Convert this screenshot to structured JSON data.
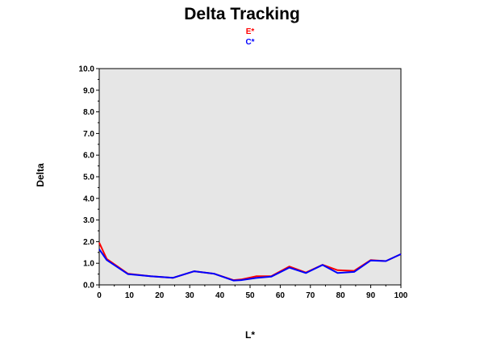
{
  "chart_data": {
    "type": "line",
    "title": "Delta Tracking",
    "xlabel": "L*",
    "ylabel": "Delta",
    "xlim": [
      0,
      100
    ],
    "ylim": [
      0,
      10
    ],
    "xticks": [
      "0",
      "10",
      "20",
      "30",
      "40",
      "50",
      "60",
      "70",
      "80",
      "90",
      "100"
    ],
    "yticks": [
      "0.0",
      "1.0",
      "2.0",
      "3.0",
      "4.0",
      "5.0",
      "6.0",
      "7.0",
      "8.0",
      "9.0",
      "10.0"
    ],
    "grid": false,
    "legend_position": "top-center",
    "series": [
      {
        "name": "E*",
        "color": "#ff0000",
        "x": [
          0,
          2.5,
          9.5,
          17,
          24.5,
          31.5,
          38,
          44.5,
          47,
          52,
          57,
          63,
          68.5,
          74,
          79,
          84.5,
          90,
          95,
          100
        ],
        "y": [
          1.95,
          1.2,
          0.52,
          0.4,
          0.33,
          0.63,
          0.52,
          0.22,
          0.25,
          0.4,
          0.4,
          0.85,
          0.57,
          0.93,
          0.68,
          0.65,
          1.15,
          1.1,
          1.42
        ]
      },
      {
        "name": "C*",
        "color": "#0000ff",
        "x": [
          0,
          2.5,
          9.5,
          17,
          24.5,
          31.5,
          38,
          44.5,
          47,
          52,
          57,
          63,
          68.5,
          74,
          79,
          84.5,
          90,
          95,
          100
        ],
        "y": [
          1.65,
          1.15,
          0.5,
          0.4,
          0.33,
          0.63,
          0.52,
          0.2,
          0.22,
          0.32,
          0.38,
          0.8,
          0.55,
          0.92,
          0.55,
          0.6,
          1.13,
          1.1,
          1.42
        ]
      }
    ]
  }
}
